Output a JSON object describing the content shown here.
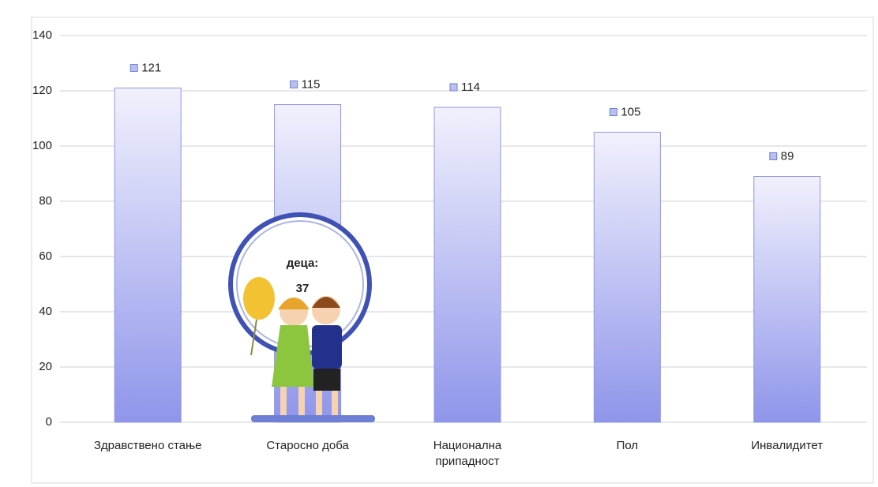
{
  "chart_data": {
    "type": "bar",
    "categories": [
      "Здравствено стање",
      "Старосно доба",
      "Национална припадност",
      "Пол",
      "Инвалидитет"
    ],
    "values": [
      121,
      115,
      114,
      105,
      89
    ],
    "color": "#8f95ea",
    "ylim": [
      0,
      140
    ],
    "yticks": [
      0,
      20,
      40,
      60,
      80,
      100,
      120,
      140
    ],
    "grid": true,
    "annotation": {
      "label": "деца:",
      "value": 37
    }
  }
}
